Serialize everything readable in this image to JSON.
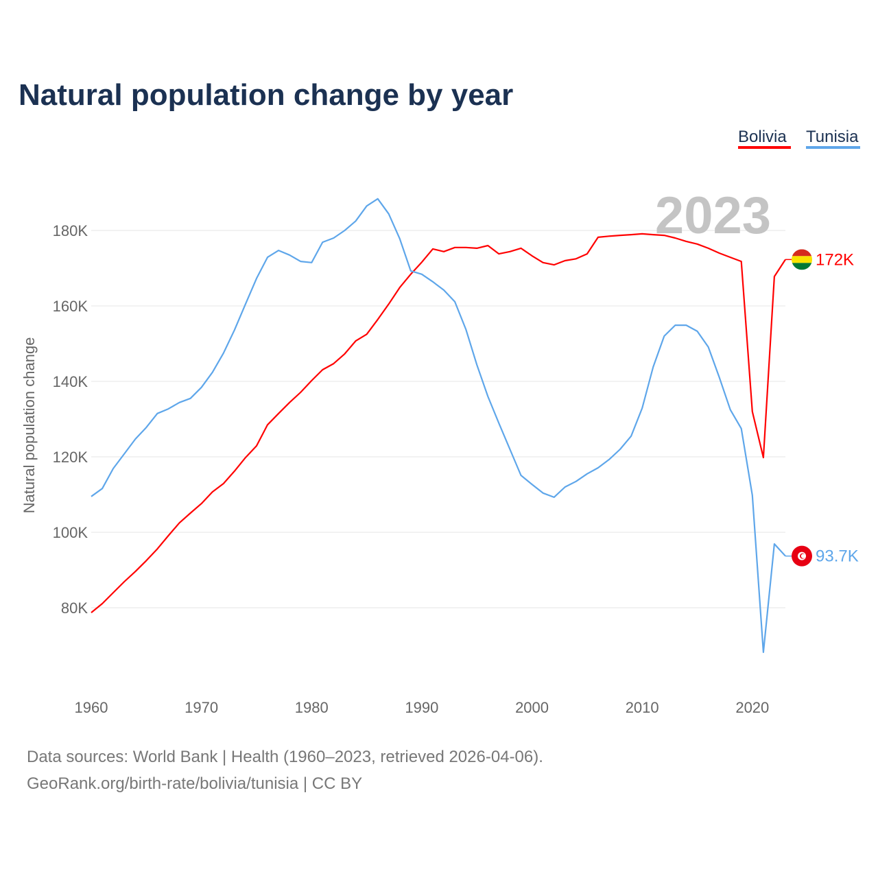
{
  "chart_data": {
    "type": "line",
    "title": "Natural population change by year",
    "xlabel": "",
    "ylabel": "Natural population change",
    "xlim": [
      1960,
      2023
    ],
    "ylim": [
      60000,
      190000
    ],
    "grid": true,
    "legend_position": "top-right",
    "x_ticks": [
      "1960",
      "1970",
      "1980",
      "1990",
      "2000",
      "2010",
      "2020"
    ],
    "y_ticks": [
      {
        "value": 80000,
        "label": "80K"
      },
      {
        "value": 100000,
        "label": "100K"
      },
      {
        "value": 120000,
        "label": "120K"
      },
      {
        "value": 140000,
        "label": "140K"
      },
      {
        "value": 160000,
        "label": "160K"
      },
      {
        "value": 180000,
        "label": "180K"
      }
    ],
    "current_year_label": "2023",
    "x_start": 1960,
    "series": [
      {
        "name": "Bolivia",
        "color": "#ff0000",
        "end_label": "172K",
        "flag": "bolivia-flag",
        "values": [
          78700,
          81100,
          84000,
          86900,
          89600,
          92500,
          95600,
          99100,
          102500,
          105100,
          107600,
          110700,
          112900,
          116200,
          119800,
          122900,
          128500,
          131500,
          134400,
          137100,
          140200,
          143100,
          144700,
          147300,
          150700,
          152500,
          156400,
          160500,
          164900,
          168400,
          171600,
          175100,
          174400,
          175500,
          175500,
          175300,
          176000,
          173800,
          174400,
          175300,
          173300,
          171500,
          170900,
          172000,
          172500,
          173800,
          178200,
          178500,
          178700,
          178900,
          179100,
          178900,
          178700,
          178000,
          177100,
          176400,
          175300,
          174000,
          172900,
          171800,
          132000,
          119800,
          167800,
          172300
        ]
      },
      {
        "name": "Tunisia",
        "color": "#5ea6ea",
        "end_label": "93.7K",
        "flag": "tunisia-flag",
        "values": [
          109500,
          111600,
          116900,
          120800,
          124700,
          127800,
          131500,
          132700,
          134400,
          135500,
          138400,
          142400,
          147500,
          153600,
          160500,
          167300,
          172900,
          174700,
          173500,
          171800,
          171500,
          176900,
          178000,
          180000,
          182500,
          186500,
          188400,
          184400,
          177800,
          169300,
          168400,
          166400,
          164200,
          161100,
          153800,
          144400,
          136000,
          128900,
          122000,
          115100,
          112700,
          110400,
          109300,
          112000,
          113500,
          115500,
          117100,
          119300,
          122000,
          125500,
          132900,
          143800,
          152000,
          154900,
          154900,
          153300,
          149100,
          141100,
          132500,
          127500,
          109800,
          68200,
          96900,
          93700
        ]
      }
    ]
  },
  "footer": {
    "line1": "Data sources: World Bank | Health (1960–2023, retrieved 2026-04-06).",
    "line2": "GeoRank.org/birth-rate/bolivia/tunisia | CC BY"
  }
}
